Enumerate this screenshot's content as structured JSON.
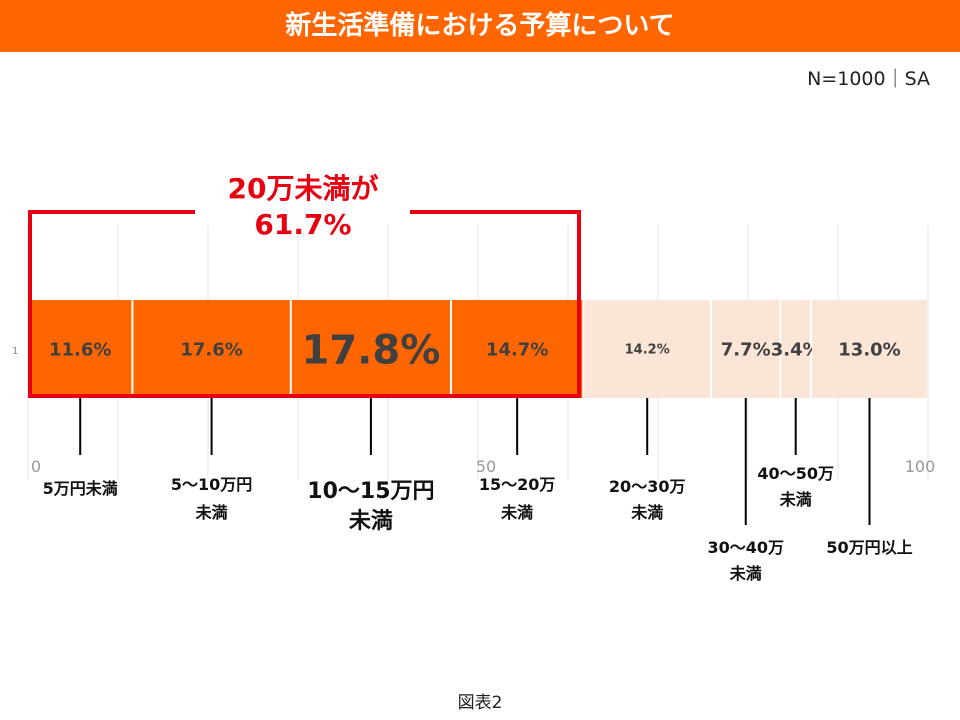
{
  "title": "新生活準備における予算について",
  "sample_note": "N=1000｜SA",
  "figure_caption": "図表2",
  "annotation": {
    "line1": "20万未満が",
    "line2": "61.7%",
    "color": "#e60012"
  },
  "chart_data": {
    "type": "bar",
    "orientation": "horizontal-stacked",
    "row_label": "1",
    "xlim": [
      0,
      100
    ],
    "x_ticks": [
      "0",
      "50",
      "100"
    ],
    "grid": true,
    "categories": [
      "5万円未満",
      "5〜10万円未満",
      "10〜15万円未満",
      "15〜20万未満",
      "20〜30万未満",
      "30〜40万未満",
      "40〜50万未満",
      "50万円以上"
    ],
    "values": [
      11.6,
      17.6,
      17.8,
      14.7,
      14.2,
      7.7,
      3.4,
      13.0
    ],
    "data_labels": [
      "11.6%",
      "17.6%",
      "17.8%",
      "14.7%",
      "14.2%",
      "7.7%",
      "3.4%",
      "13.0%"
    ],
    "colors": {
      "highlight": "#ff6600",
      "other": "#fbe5d6",
      "text": "#404040"
    }
  }
}
